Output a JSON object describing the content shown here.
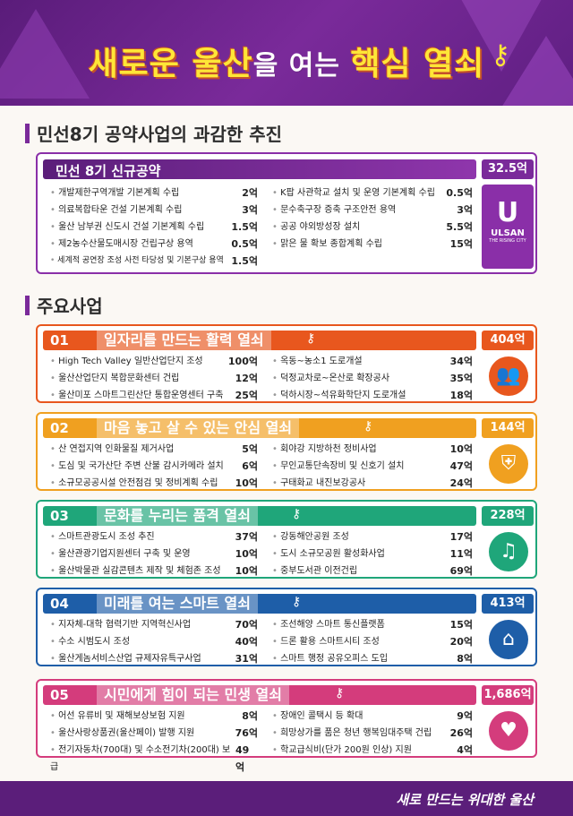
{
  "header": {
    "title_part1": "새로운 울산",
    "title_part2": "을 여는 ",
    "title_part3": "핵심 열쇠"
  },
  "section1": {
    "heading": "민선8기 공약사업의 과감한 추진"
  },
  "pledge": {
    "label": "민선 8기 신규공약",
    "amount": "32.5억",
    "badge_logo": "U",
    "badge_line1": "ULSAN",
    "badge_line2": "THE RISING CITY",
    "left": [
      {
        "name": "개발제한구역개발 기본계획 수립",
        "val": "2억"
      },
      {
        "name": "의료복합타운 건설 기본계획 수립",
        "val": "3억"
      },
      {
        "name": "울산 남부권 신도시 건설 기본계획 수립",
        "val": "1.5억"
      },
      {
        "name": "제2농수산물도매시장 건립구상 용역",
        "val": "0.5억"
      },
      {
        "name": "세계적 공연장 조성 사전 타당성 및 기본구상 용역",
        "val": "1.5억"
      }
    ],
    "right": [
      {
        "name": "K팝 사관학교 설치 및 운영 기본계획 수립",
        "val": "0.5억"
      },
      {
        "name": "문수축구장 증축 구조안전 용역",
        "val": "3억"
      },
      {
        "name": "공공 야외방성장 설치",
        "val": "5.5억"
      },
      {
        "name": "맑은 물 확보 종합계획 수립",
        "val": "15억"
      }
    ]
  },
  "section2": {
    "heading": "주요사업"
  },
  "blocks": [
    {
      "num": "01",
      "title": "일자리를 만드는 활력 열쇠",
      "amount": "404억",
      "color": "#e8571e",
      "icon": "people-icon",
      "left": [
        {
          "name": "High Tech Valley 일반산업단지 조성",
          "val": "100억"
        },
        {
          "name": "울산산업단지 복합문화센터 건립",
          "val": "12억"
        },
        {
          "name": "울산미포 스마트그린산단 통합운영센터 구축",
          "val": "25억"
        }
      ],
      "right": [
        {
          "name": "옥동~농소1 도로개설",
          "val": "34억"
        },
        {
          "name": "덕정교차로~온산로 확장공사",
          "val": "35억"
        },
        {
          "name": "덕하시장~석유화학단지 도로개설",
          "val": "18억"
        }
      ]
    },
    {
      "num": "02",
      "title": "마음 놓고 살 수 있는 안심 열쇠",
      "amount": "144억",
      "color": "#f0a020",
      "icon": "shield-icon",
      "left": [
        {
          "name": "산 연접지역 인화물질 제거사업",
          "val": "5억"
        },
        {
          "name": "도심 및 국가산단 주변 산불 감시카메라 설치",
          "val": "6억"
        },
        {
          "name": "소규모공공시설 안전점검 및 정비계획 수립",
          "val": "10억"
        }
      ],
      "right": [
        {
          "name": "회야강 지방하천 정비사업",
          "val": "10억"
        },
        {
          "name": "무인교통단속장비 및 신호기 설치",
          "val": "47억"
        },
        {
          "name": "구태화교 내진보강공사",
          "val": "24억"
        }
      ]
    },
    {
      "num": "03",
      "title": "문화를 누리는 품격 열쇠",
      "amount": "228억",
      "color": "#1fa67a",
      "icon": "culture-icon",
      "left": [
        {
          "name": "스마트관광도시 조성 추진",
          "val": "37억"
        },
        {
          "name": "울산관광기업지원센터 구축 및 운영",
          "val": "10억"
        },
        {
          "name": "울산박물관 실감콘텐츠 제작 및 체험존 조성",
          "val": "10억"
        }
      ],
      "right": [
        {
          "name": "강동해안공원 조성",
          "val": "17억"
        },
        {
          "name": "도시 소규모공원 활성화사업",
          "val": "11억"
        },
        {
          "name": "중부도서관 이전건립",
          "val": "69억"
        }
      ]
    },
    {
      "num": "04",
      "title": "미래를 여는 스마트 열쇠",
      "amount": "413억",
      "color": "#1e5ea8",
      "icon": "smart-city-icon",
      "left": [
        {
          "name": "지자체-대학 협력기반 지역혁신사업",
          "val": "70억"
        },
        {
          "name": "수소 시범도시 조성",
          "val": "40억"
        },
        {
          "name": "울산게놈서비스산업 규제자유특구사업",
          "val": "31억"
        }
      ],
      "right": [
        {
          "name": "조선해양 스마트 통신플랫폼",
          "val": "15억"
        },
        {
          "name": "드론 활용 스마트시티 조성",
          "val": "20억"
        },
        {
          "name": "스마트 행정 공유오피스 도입",
          "val": "8억"
        }
      ]
    },
    {
      "num": "05",
      "title": "시민에게 힘이 되는 민생 열쇠",
      "amount": "1,686억",
      "color": "#d43c7c",
      "icon": "heart-hand-icon",
      "left": [
        {
          "name": "어선 유류비 및 재해보상보험 지원",
          "val": "8억"
        },
        {
          "name": "울산사랑상품권(울산페이) 발행 지원",
          "val": "76억"
        },
        {
          "name": "전기자동차(700대) 및 수소전기차(200대) 보급",
          "val": "49억"
        }
      ],
      "right": [
        {
          "name": "장애인 콜택시 등 확대",
          "val": "9억"
        },
        {
          "name": "희망상가를 품은 청년 행복임대주택 건립",
          "val": "26억"
        },
        {
          "name": "학교급식비(단가 200원 인상) 지원",
          "val": "4억"
        }
      ]
    }
  ],
  "footer": {
    "slogan": "새로 만드는 위대한 울산"
  }
}
